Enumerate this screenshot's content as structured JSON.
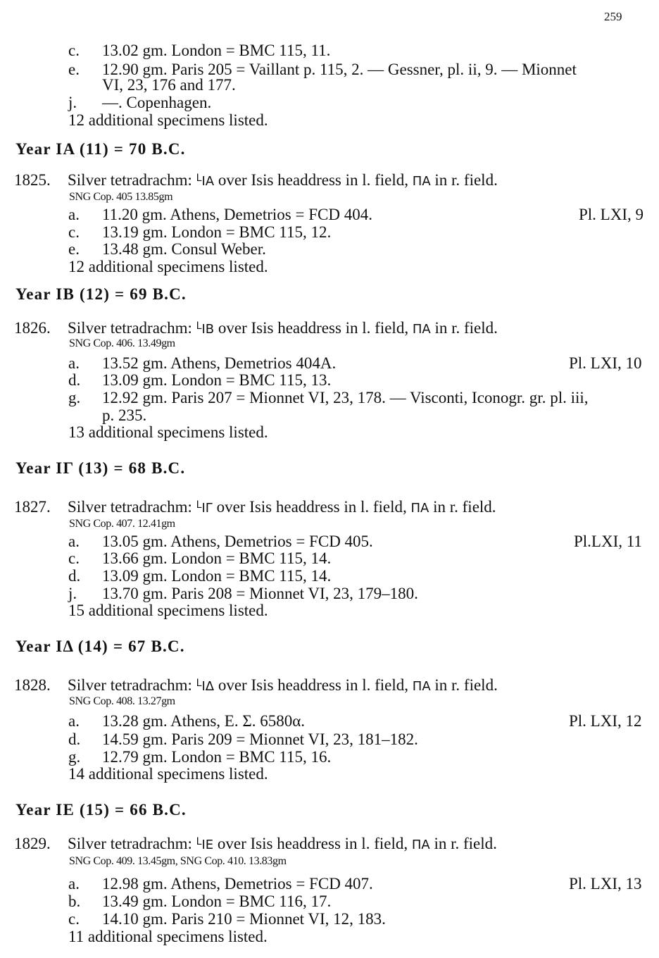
{
  "page_number": "259",
  "top": {
    "items": [
      {
        "label": "c.",
        "text": "13.02 gm. London = BMC 115, 11."
      },
      {
        "label": "e.",
        "text": "12.90 gm. Paris 205 = Vaillant p. 115, 2. — Gessner, pl. ii, 9. — Mionnet",
        "cont": "VI, 23, 176 and 177."
      },
      {
        "label": "j.",
        "text": "—. Copenhagen."
      }
    ],
    "additional": "12 additional specimens listed."
  },
  "common": {
    "pre": "Silver tetradrachm: ",
    "year_mark": "L",
    "mid": " over Isis headdress in l. field, ",
    "monogram": "ΠΑ",
    "post": " in r. field."
  },
  "sections": [
    {
      "heading": "Year IA (11) = 70 B.C.",
      "number": "1825.",
      "symbol": "IA",
      "sng": "SNG Cop. 405  13.85gm",
      "items": [
        {
          "label": "a.",
          "text": "11.20 gm. Athens, Demetrios = FCD 404.",
          "plate": "Pl. LXI, 9"
        },
        {
          "label": "c.",
          "text": "13.19 gm. London = BMC 115, 12."
        },
        {
          "label": "e.",
          "text": "13.48 gm. Consul Weber."
        }
      ],
      "additional": "12 additional specimens listed."
    },
    {
      "heading": "Year IB (12) = 69 B.C.",
      "number": "1826.",
      "symbol": "IB",
      "sng": "SNG Cop. 406.  13.49gm",
      "items": [
        {
          "label": "a.",
          "text": "13.52 gm. Athens, Demetrios 404A.",
          "plate": "Pl. LXI, 10"
        },
        {
          "label": "d.",
          "text": "13.09 gm. London = BMC 115, 13."
        },
        {
          "label": "g.",
          "text": "12.92 gm. Paris 207 = Mionnet VI, 23, 178. — Visconti, Iconogr. gr. pl. iii,",
          "cont": "p. 235."
        }
      ],
      "additional": "13 additional specimens listed."
    },
    {
      "heading": "Year IΓ (13) = 68 B.C.",
      "number": "1827.",
      "symbol": "IΓ",
      "sng": "SNG Cop. 407.  12.41gm",
      "items": [
        {
          "label": "a.",
          "text": "13.05 gm. Athens, Demetrios = FCD 405.",
          "plate": "Pl.LXI, 11"
        },
        {
          "label": "c.",
          "text": "13.66 gm. London = BMC 115, 14."
        },
        {
          "label": "d.",
          "text": "13.09 gm. London = BMC 115, 14."
        },
        {
          "label": "j.",
          "text": "13.70 gm. Paris 208 = Mionnet VI, 23, 179–180."
        }
      ],
      "additional": "15 additional specimens listed."
    },
    {
      "heading": "Year IΔ (14) = 67 B.C.",
      "number": "1828.",
      "symbol": "IΔ",
      "sng": "SNG Cop. 408.  13.27gm",
      "items": [
        {
          "label": "a.",
          "text": "13.28 gm. Athens, E. Σ. 6580α.",
          "plate": "Pl. LXI, 12"
        },
        {
          "label": "d.",
          "text": "14.59 gm. Paris 209 = Mionnet VI, 23, 181–182."
        },
        {
          "label": "g.",
          "text": "12.79 gm. London = BMC 115, 16."
        }
      ],
      "additional": "14 additional specimens listed."
    },
    {
      "heading": "Year IE (15) = 66 B.C.",
      "number": "1829.",
      "symbol": "IE",
      "sng": "SNG Cop. 409. 13.45gm, SNG Cop. 410. 13.83gm",
      "items": [
        {
          "label": "a.",
          "text": "12.98 gm. Athens, Demetrios = FCD 407.",
          "plate": "Pl. LXI, 13"
        },
        {
          "label": "b.",
          "text": "13.49 gm. London = BMC 116, 17."
        },
        {
          "label": "c.",
          "text": "14.10 gm. Paris 210 = Mionnet VI, 12, 183."
        }
      ],
      "additional": "11 additional specimens listed."
    }
  ]
}
